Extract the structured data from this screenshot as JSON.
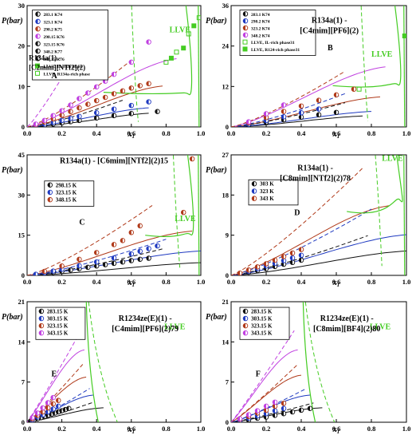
{
  "figure": {
    "colors": {
      "black": "#111111",
      "red": "#b03a1a",
      "blue": "#1f3ac0",
      "magenta": "#c040e0",
      "green": "#44cc22",
      "frame": "#000000"
    }
  },
  "chart_data": [
    {
      "panel": "A",
      "type": "scatter",
      "title_lines": [
        "R134a(1) -",
        "[C2mim][NTf2](2)"
      ],
      "ylabel": "P(bar)",
      "xlabel": "x1",
      "xlim": [
        0,
        1
      ],
      "ylim": [
        0,
        30
      ],
      "xticks": [
        0,
        0.2,
        0.4,
        0.6,
        0.8,
        1.0
      ],
      "xtick_labels": [
        "0.0",
        "0.2",
        "0.4",
        "0.6",
        "0.8",
        "1.0"
      ],
      "yticks": [
        0,
        10,
        20,
        30
      ],
      "ytick_labels": [
        "0",
        "10",
        "20",
        "30"
      ],
      "llve_label": "LLVE",
      "legend": [
        "283.1 K74",
        "323.1 K74",
        "298.2 K75",
        "298.15 K76",
        "323.15 K76",
        "348.2 K77",
        "348.15 K76",
        "LLVE, IL-rich phase",
        "LLVE, R134a-rich phase"
      ],
      "series": [
        {
          "name": "283.1 K",
          "color": "black",
          "x": [
            0.05,
            0.1,
            0.15,
            0.2,
            0.25,
            0.3,
            0.4,
            0.5,
            0.6,
            0.75
          ],
          "y": [
            0.2,
            0.4,
            0.7,
            1.0,
            1.3,
            1.6,
            2.2,
            2.8,
            3.3,
            3.8
          ]
        },
        {
          "name": "298.2 K",
          "color": "blue",
          "x": [
            0.05,
            0.1,
            0.15,
            0.2,
            0.25,
            0.3,
            0.4,
            0.5,
            0.6,
            0.7
          ],
          "y": [
            0.3,
            0.7,
            1.1,
            1.6,
            2.1,
            2.6,
            3.5,
            4.4,
            5.3,
            6.2
          ]
        },
        {
          "name": "323.1 K",
          "color": "red",
          "x": [
            0.05,
            0.1,
            0.15,
            0.2,
            0.25,
            0.3,
            0.35,
            0.4,
            0.45,
            0.5,
            0.55,
            0.6,
            0.65,
            0.7
          ],
          "y": [
            0.5,
            1.2,
            2.0,
            2.9,
            3.8,
            4.7,
            5.6,
            6.5,
            7.3,
            8.2,
            8.9,
            9.6,
            10.2,
            10.7
          ]
        },
        {
          "name": "348.2 K",
          "color": "magenta",
          "x": [
            0.05,
            0.1,
            0.15,
            0.2,
            0.25,
            0.3,
            0.35,
            0.4,
            0.45,
            0.5,
            0.6,
            0.7
          ],
          "y": [
            0.7,
            1.6,
            2.8,
            4.0,
            5.4,
            7.0,
            8.4,
            9.9,
            11.3,
            13.0,
            16.0,
            21.0
          ]
        },
        {
          "name": "LLVE",
          "color": "green",
          "x": [
            0.8,
            0.83,
            0.86,
            0.9,
            0.93,
            0.96,
            0.99
          ],
          "y": [
            16,
            17,
            18.5,
            19.5,
            23,
            25,
            27
          ]
        }
      ]
    },
    {
      "panel": "B",
      "type": "scatter",
      "title_lines": [
        "R134a(1) -",
        "[C4mim][PF6](2)"
      ],
      "ylabel": "P(bar)",
      "xlabel": "x1",
      "xlim": [
        0,
        1
      ],
      "ylim": [
        0,
        36
      ],
      "xticks": [
        0,
        0.2,
        0.4,
        0.6,
        0.8,
        1.0
      ],
      "xtick_labels": [
        "0.0",
        "0.2",
        "0.4",
        "0.6",
        "0.8",
        "1.0"
      ],
      "yticks": [
        0,
        12,
        24,
        36
      ],
      "ytick_labels": [
        "0",
        "12",
        "24",
        "36"
      ],
      "llve_label": "LLVE",
      "legend": [
        "283.1 K74",
        "298.2 K74",
        "323.2 K74",
        "348.2 K74",
        "LLVE, IL-rich phase31",
        "LLVE, R124-rich phase31"
      ],
      "series": [
        {
          "name": "283.1 K",
          "color": "black",
          "x": [
            0.1,
            0.2,
            0.3,
            0.4,
            0.5,
            0.6
          ],
          "y": [
            0.6,
            1.4,
            2.1,
            2.9,
            3.6,
            4.3
          ]
        },
        {
          "name": "298.2 K",
          "color": "blue",
          "x": [
            0.1,
            0.2,
            0.3,
            0.4,
            0.5
          ],
          "y": [
            0.8,
            1.9,
            3.0,
            4.2,
            5.3
          ]
        },
        {
          "name": "323.2 K",
          "color": "red",
          "x": [
            0.1,
            0.2,
            0.3,
            0.4,
            0.5,
            0.6,
            0.7
          ],
          "y": [
            1.2,
            2.8,
            4.6,
            6.2,
            7.9,
            9.5,
            11.2
          ]
        },
        {
          "name": "348.2 K",
          "color": "magenta",
          "x": [
            0.1,
            0.2,
            0.3
          ],
          "y": [
            1.5,
            3.9,
            6.5
          ]
        },
        {
          "name": "LLVE",
          "color": "green",
          "x": [
            0.73,
            0.99
          ],
          "y": [
            11.2,
            27.0
          ]
        }
      ]
    },
    {
      "panel": "C",
      "type": "scatter",
      "title_lines": [
        "R134a(1) - [C6mim][NTf2](2)15"
      ],
      "ylabel": "P(bar)",
      "xlabel": "x1",
      "xlim": [
        0,
        1
      ],
      "ylim": [
        0,
        45
      ],
      "xticks": [
        0,
        0.2,
        0.4,
        0.6,
        0.8,
        1.0
      ],
      "xtick_labels": [
        "0.0",
        "0.2",
        "0.4",
        "0.6",
        "0.8",
        "1.0"
      ],
      "yticks": [
        0,
        15,
        30,
        45
      ],
      "ytick_labels": [
        "0",
        "15",
        "30",
        "45"
      ],
      "llve_label": "LLVE",
      "legend": [
        "298.15 K",
        "323.15 K",
        "348.15 K"
      ],
      "series": [
        {
          "name": "298.15 K",
          "color": "black",
          "x": [
            0.05,
            0.1,
            0.15,
            0.2,
            0.25,
            0.3,
            0.35,
            0.4,
            0.45,
            0.5,
            0.55,
            0.6,
            0.65,
            0.7
          ],
          "y": [
            0.3,
            0.7,
            1.1,
            1.5,
            2.0,
            2.5,
            3.0,
            3.5,
            4.0,
            4.5,
            5.0,
            5.5,
            6.0,
            6.4
          ]
        },
        {
          "name": "323.15 K",
          "color": "blue",
          "x": [
            0.05,
            0.1,
            0.15,
            0.2,
            0.3,
            0.4,
            0.5,
            0.6,
            0.65,
            0.7,
            0.75
          ],
          "y": [
            0.4,
            1.0,
            1.6,
            2.3,
            3.6,
            5.0,
            6.5,
            8.0,
            9.0,
            10.0,
            11.0
          ]
        },
        {
          "name": "348.15 K",
          "color": "red",
          "x": [
            0.1,
            0.2,
            0.3,
            0.4,
            0.5,
            0.55,
            0.6,
            0.65,
            0.9,
            0.95
          ],
          "y": [
            1.5,
            3.5,
            6.0,
            8.5,
            11.5,
            13.0,
            16.0,
            18.5,
            23.5,
            43.5
          ]
        }
      ]
    },
    {
      "panel": "D",
      "type": "scatter",
      "title_lines": [
        "R134a(1) -",
        "[C8mim][NTf2](2)78"
      ],
      "ylabel": "P(bar)",
      "xlabel": "x1",
      "xlim": [
        0,
        1
      ],
      "ylim": [
        0,
        27
      ],
      "xticks": [
        0,
        0.2,
        0.4,
        0.6,
        0.8,
        1.0
      ],
      "xtick_labels": [
        "0.0",
        "0.2",
        "0.4",
        "0.6",
        "0.8",
        "1.0"
      ],
      "yticks": [
        0,
        9,
        18,
        27
      ],
      "ytick_labels": [
        "0",
        "9",
        "18",
        "27"
      ],
      "llve_label": "LLVE",
      "legend": [
        "303 K",
        "323 K",
        "343 K"
      ],
      "series": [
        {
          "name": "303 K",
          "color": "black",
          "x": [
            0.05,
            0.1,
            0.15,
            0.2,
            0.25,
            0.3,
            0.35,
            0.4
          ],
          "y": [
            0.3,
            0.7,
            1.1,
            1.5,
            2.0,
            2.5,
            2.9,
            3.4
          ]
        },
        {
          "name": "323 K",
          "color": "blue",
          "x": [
            0.05,
            0.1,
            0.15,
            0.2,
            0.25,
            0.3,
            0.35,
            0.4
          ],
          "y": [
            0.4,
            0.9,
            1.5,
            2.1,
            2.7,
            3.3,
            3.9,
            4.5
          ]
        },
        {
          "name": "343 K",
          "color": "red",
          "x": [
            0.05,
            0.1,
            0.15,
            0.2,
            0.25,
            0.3,
            0.35,
            0.4
          ],
          "y": [
            0.5,
            1.2,
            1.9,
            2.6,
            3.4,
            4.2,
            5.0,
            5.8
          ]
        }
      ]
    },
    {
      "panel": "E",
      "type": "scatter",
      "title_lines": [
        "R1234ze(E)(1) -",
        "[C4mim][PF6](2)79"
      ],
      "ylabel": "P(bar)",
      "xlabel": "x1",
      "xlim": [
        0,
        1
      ],
      "ylim": [
        0,
        21
      ],
      "xticks": [
        0,
        0.2,
        0.4,
        0.6,
        0.8,
        1.0
      ],
      "xtick_labels": [
        "0.0",
        "0.2",
        "0.4",
        "0.6",
        "0.8",
        "1.0"
      ],
      "yticks": [
        0,
        7,
        14,
        21
      ],
      "ytick_labels": [
        "0",
        "7",
        "14",
        "21"
      ],
      "llve_label": "LLVE",
      "legend": [
        "283.15 K",
        "303.15 K",
        "323.15 K",
        "343.15 K"
      ],
      "series": [
        {
          "name": "283.15 K",
          "color": "black",
          "x": [
            0.02,
            0.04,
            0.06,
            0.08,
            0.1,
            0.12,
            0.14,
            0.16,
            0.18,
            0.2,
            0.22,
            0.24
          ],
          "y": [
            0.2,
            0.4,
            0.6,
            0.8,
            1.0,
            1.2,
            1.4,
            1.6,
            1.8,
            2.0,
            2.2,
            2.4
          ]
        },
        {
          "name": "303.15 K",
          "color": "blue",
          "x": [
            0.03,
            0.06,
            0.09,
            0.12,
            0.15,
            0.18
          ],
          "y": [
            0.4,
            0.9,
            1.3,
            1.8,
            2.3,
            2.8
          ]
        },
        {
          "name": "323.15 K",
          "color": "red",
          "x": [
            0.03,
            0.06,
            0.09,
            0.12,
            0.15,
            0.18
          ],
          "y": [
            0.6,
            1.2,
            1.8,
            2.5,
            3.2,
            3.8
          ]
        },
        {
          "name": "343.15 K",
          "color": "magenta",
          "x": [
            0.03,
            0.06,
            0.09,
            0.12,
            0.15
          ],
          "y": [
            0.8,
            1.6,
            2.5,
            3.4,
            4.3
          ]
        }
      ]
    },
    {
      "panel": "F",
      "type": "scatter",
      "title_lines": [
        "R1234ze(E)(1) -",
        "[C8mim][BF4](2)80"
      ],
      "ylabel": "P(bar)",
      "xlabel": "x1",
      "xlim": [
        0,
        1
      ],
      "ylim": [
        0,
        21
      ],
      "xticks": [
        0,
        0.2,
        0.4,
        0.6,
        0.8,
        1.0
      ],
      "xtick_labels": [
        "0.0",
        "0.2",
        "0.4",
        "0.6",
        "0.8",
        "1.0"
      ],
      "yticks": [
        0,
        7,
        14,
        21
      ],
      "ytick_labels": [
        "0",
        "7",
        "14",
        "21"
      ],
      "llve_label": "LLVE",
      "legend": [
        "283.15 K",
        "303.15 K",
        "323.15 K",
        "343.15 K"
      ],
      "series": [
        {
          "name": "283.15 K",
          "color": "black",
          "x": [
            0.05,
            0.1,
            0.15,
            0.2,
            0.25,
            0.3,
            0.35,
            0.4,
            0.45
          ],
          "y": [
            0.2,
            0.4,
            0.7,
            0.9,
            1.2,
            1.5,
            1.8,
            2.1,
            2.4
          ]
        },
        {
          "name": "303.15 K",
          "color": "blue",
          "x": [
            0.05,
            0.1,
            0.15,
            0.2,
            0.25,
            0.3
          ],
          "y": [
            0.3,
            0.7,
            1.1,
            1.5,
            2.0,
            2.4
          ]
        },
        {
          "name": "323.15 K",
          "color": "red",
          "x": [
            0.05,
            0.1,
            0.15,
            0.2,
            0.25,
            0.3
          ],
          "y": [
            0.5,
            1.0,
            1.6,
            2.1,
            2.8,
            3.3
          ]
        },
        {
          "name": "343.15 K",
          "color": "magenta",
          "x": [
            0.05,
            0.1,
            0.15,
            0.2,
            0.25
          ],
          "y": [
            0.6,
            1.3,
            2.0,
            2.8,
            3.5
          ]
        }
      ]
    }
  ]
}
